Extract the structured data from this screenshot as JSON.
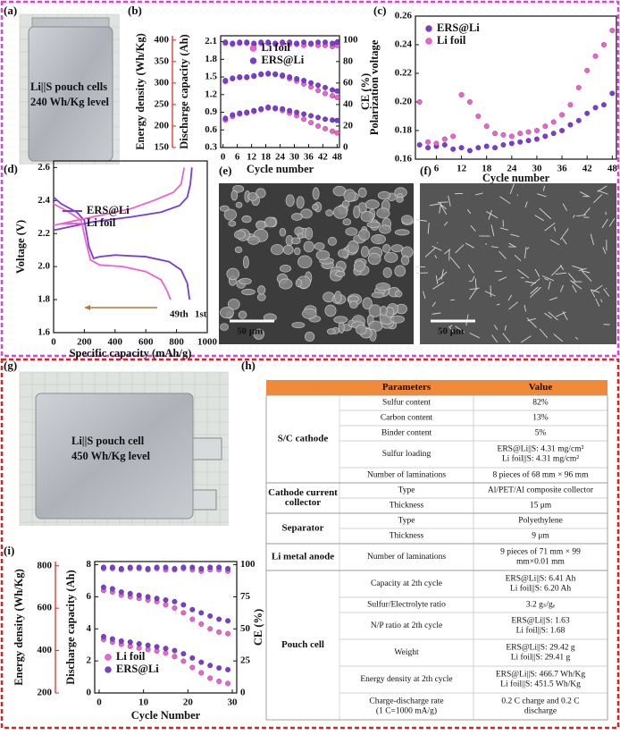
{
  "panel_labels": [
    "(a)",
    "(b)",
    "(c)",
    "(d)",
    "(e)",
    "(f)",
    "(g)",
    "(h)",
    "(i)"
  ],
  "photos": [
    {
      "lines": [
        "Li||S pouch cells",
        "240 Wh/Kg level"
      ]
    },
    {
      "lines": [
        "Li||S pouch cell",
        "450 Wh/Kg level"
      ]
    }
  ],
  "sem_images": [
    {
      "scale_bar": "50 μm"
    },
    {
      "scale_bar": "50 μm"
    }
  ],
  "chart_data": [
    {
      "type": "scatter",
      "xlabel": "Cycle number",
      "ylabel": "Discharge capacity (Ah)",
      "y2label": "CE (%)",
      "y3label": "Energy density (Wh/Kg)",
      "y3color": "#e0201b",
      "x": [
        1,
        4,
        7,
        10,
        13,
        16,
        19,
        22,
        25,
        28,
        31,
        34,
        37,
        40,
        43,
        46,
        48
      ],
      "xlim": [
        -1,
        49
      ],
      "xticks": [
        0,
        6,
        12,
        18,
        24,
        30,
        36,
        42,
        48
      ],
      "ylim": [
        0.3,
        2.2
      ],
      "yticks": [
        0.3,
        0.6,
        0.9,
        1.2,
        1.5,
        1.8,
        2.1
      ],
      "y2lim": [
        0,
        104
      ],
      "y2ticks": [
        0,
        20,
        40,
        60,
        80,
        100
      ],
      "y3lim": [
        150,
        410
      ],
      "y3ticks": [
        150,
        200,
        250,
        300,
        350,
        400
      ],
      "legend": "upper center",
      "series": [
        {
          "name": "Li foil",
          "color": "#f060d0",
          "values": [
            1.42,
            1.47,
            1.49,
            1.49,
            1.51,
            1.54,
            1.55,
            1.54,
            1.51,
            1.47,
            1.43,
            1.38,
            1.33,
            1.27,
            1.22,
            1.18,
            1.15
          ]
        },
        {
          "name": "ERS@Li",
          "color": "#7a3bd6",
          "values": [
            1.44,
            1.48,
            1.5,
            1.5,
            1.52,
            1.55,
            1.56,
            1.55,
            1.53,
            1.5,
            1.47,
            1.44,
            1.4,
            1.36,
            1.32,
            1.28,
            1.26
          ]
        },
        {
          "color": "#f060d0",
          "axis": "y3",
          "values": [
            214,
            222,
            228,
            230,
            234,
            238,
            242,
            240,
            236,
            230,
            224,
            216,
            208,
            200,
            194,
            188,
            184
          ]
        },
        {
          "color": "#7a3bd6",
          "axis": "y3",
          "values": [
            218,
            226,
            230,
            232,
            236,
            240,
            244,
            242,
            240,
            236,
            232,
            228,
            224,
            220,
            216,
            214,
            213
          ]
        },
        {
          "color": "#f060d0",
          "axis": "y2",
          "values": [
            97,
            96,
            97,
            97,
            96,
            97,
            97,
            96,
            97,
            96,
            96,
            95,
            96,
            95,
            95,
            94,
            95
          ]
        },
        {
          "color": "#7a3bd6",
          "axis": "y2",
          "values": [
            98,
            97,
            98,
            98,
            97,
            98,
            98,
            97,
            98,
            98,
            97,
            98,
            97,
            98,
            98,
            97,
            98
          ]
        }
      ]
    },
    {
      "type": "scatter",
      "xlabel": "Cycle number",
      "ylabel": "Polarization voltage",
      "x": [
        2,
        4,
        6,
        8,
        10,
        12,
        14,
        16,
        18,
        20,
        22,
        24,
        26,
        28,
        30,
        32,
        34,
        36,
        38,
        40,
        42,
        44,
        46,
        48
      ],
      "xlim": [
        1,
        49
      ],
      "xticks": [
        6,
        12,
        18,
        24,
        30,
        36,
        42,
        48
      ],
      "ylim": [
        0.16,
        0.26
      ],
      "yticks": [
        0.16,
        0.18,
        {
          "value": 0.2,
          "label": "0.20"
        },
        0.22,
        0.24,
        0.26
      ],
      "legend": "upper left",
      "series": [
        {
          "name": "ERS@Li",
          "color": "#7a3bd6",
          "values": [
            0.17,
            0.168,
            0.169,
            0.17,
            0.167,
            0.168,
            0.166,
            0.168,
            0.169,
            0.168,
            0.17,
            0.171,
            0.172,
            0.173,
            0.174,
            0.176,
            0.178,
            0.18,
            0.184,
            0.187,
            0.192,
            0.196,
            0.198,
            0.206
          ]
        },
        {
          "name": "Li foil",
          "color": "#f060d0",
          "values": [
            0.2,
            0.172,
            0.171,
            0.174,
            0.176,
            0.205,
            0.2,
            0.19,
            0.183,
            0.178,
            0.177,
            0.176,
            0.178,
            0.179,
            0.18,
            0.183,
            0.186,
            0.191,
            0.198,
            0.21,
            0.222,
            0.232,
            0.24,
            0.25
          ]
        }
      ]
    },
    {
      "type": "line",
      "xlabel": "Specific capacity (mAh/g)",
      "ylabel": "Voltage (V)",
      "xlim": [
        0,
        1000
      ],
      "xticks": [
        0,
        200,
        400,
        600,
        800,
        1000
      ],
      "ylim": [
        1.6,
        2.64
      ],
      "yticks": [
        1.6,
        1.8,
        {
          "value": 2,
          "label": "2.0"
        },
        2.2,
        2.4,
        2.6
      ],
      "legend": "center left",
      "annotations": [
        "49th",
        "1st"
      ],
      "series": [
        {
          "name": "ERS@Li",
          "color": "#7a3bd6",
          "x": [
            0,
            50,
            150,
            200,
            230,
            260,
            300,
            400,
            600,
            750,
            830,
            870,
            885,
            null,
            0,
            100,
            250,
            500,
            700,
            820,
            870,
            890,
            900
          ],
          "values": [
            2.42,
            2.38,
            2.33,
            2.28,
            2.12,
            2.05,
            2.06,
            2.07,
            2.06,
            2.03,
            1.98,
            1.9,
            1.8,
            null,
            2.22,
            2.24,
            2.27,
            2.3,
            2.33,
            2.37,
            2.42,
            2.5,
            2.6
          ]
        },
        {
          "name": "Li foil",
          "color": "#f060d0",
          "x": [
            0,
            100,
            180,
            210,
            240,
            300,
            450,
            600,
            700,
            740,
            760,
            null,
            0,
            100,
            250,
            500,
            650,
            780,
            830,
            850
          ],
          "values": [
            2.38,
            2.33,
            2.28,
            2.15,
            2.04,
            2.01,
            2,
            1.97,
            1.92,
            1.85,
            1.8,
            null,
            2.25,
            2.27,
            2.3,
            2.35,
            2.4,
            2.45,
            2.5,
            2.6
          ]
        }
      ]
    },
    {
      "type": "scatter",
      "xlabel": "Cycle Number",
      "ylabel": "Discharge capacity (Ah)",
      "y2label": "CE (%)",
      "y3label": "Energy density (Wh/Kg)",
      "y3color": "#e0201b",
      "x": [
        1,
        3,
        5,
        7,
        9,
        11,
        13,
        15,
        17,
        19,
        21,
        23,
        25,
        27,
        29
      ],
      "xlim": [
        -1,
        31
      ],
      "xticks": [
        0,
        10,
        20,
        30
      ],
      "ylim": [
        0,
        8.2
      ],
      "yticks": [
        0,
        2,
        4,
        6,
        8
      ],
      "y2lim": [
        0,
        102.5
      ],
      "y2ticks": [
        0,
        25,
        50,
        75,
        100
      ],
      "y3lim": [
        200,
        820
      ],
      "y3ticks": [
        200,
        400,
        600,
        800
      ],
      "legend": "lower left",
      "series": [
        {
          "name": "Li foil",
          "color": "#f060d0",
          "values": [
            6.4,
            6.3,
            6.1,
            6,
            5.9,
            5.8,
            5.7,
            5.5,
            5.3,
            5,
            4.6,
            4.3,
            4,
            3.8,
            3.7
          ]
        },
        {
          "name": "ERS@Li",
          "color": "#7a3bd6",
          "values": [
            6.6,
            6.5,
            6.3,
            6.2,
            6.1,
            6,
            5.9,
            5.8,
            5.7,
            5.5,
            5.2,
            5,
            4.8,
            4.6,
            4.5
          ]
        },
        {
          "color": "#f060d0",
          "axis": "y3",
          "values": [
            452,
            440,
            430,
            420,
            412,
            405,
            398,
            388,
            372,
            350,
            320,
            295,
            270,
            255,
            245
          ]
        },
        {
          "color": "#7a3bd6",
          "axis": "y3",
          "values": [
            466,
            455,
            445,
            440,
            432,
            425,
            418,
            410,
            400,
            385,
            365,
            345,
            330,
            318,
            310
          ]
        },
        {
          "color": "#f060d0",
          "axis": "y2",
          "values": [
            97,
            97,
            96,
            97,
            97,
            96,
            97,
            96,
            96,
            97,
            96,
            95,
            96,
            96,
            95
          ]
        },
        {
          "color": "#7a3bd6",
          "axis": "y2",
          "values": [
            98,
            98,
            97,
            98,
            98,
            97,
            98,
            98,
            97,
            98,
            98,
            97,
            98,
            98,
            97
          ]
        }
      ]
    }
  ],
  "table": {
    "header": [
      "Parameters",
      "Value"
    ],
    "groups": [
      {
        "name": [
          "S/C cathode"
        ],
        "rows": [
          {
            "param": [
              "Sulfur content"
            ],
            "value": [
              "82%"
            ]
          },
          {
            "param": [
              "Carbon content"
            ],
            "value": [
              "13%"
            ]
          },
          {
            "param": [
              "Binder content"
            ],
            "value": [
              "5%"
            ]
          },
          {
            "param": [
              "Sulfur loading"
            ],
            "value": [
              "ERS@Li||S: 4.31 mg/cm²",
              "Li foil||S: 4.31 mg/cm²"
            ]
          },
          {
            "param": [
              "Number of laminations"
            ],
            "value": [
              "8 pieces of 68 mm × 96 mm"
            ]
          }
        ]
      },
      {
        "name": [
          "Cathode current",
          "collector"
        ],
        "rows": [
          {
            "param": [
              "Type"
            ],
            "value": [
              "Al/PET/Al composite collector"
            ]
          },
          {
            "param": [
              "Thickness"
            ],
            "value": [
              "15 μm"
            ]
          }
        ]
      },
      {
        "name": [
          "Separator"
        ],
        "rows": [
          {
            "param": [
              "Type"
            ],
            "value": [
              "Polyethylene"
            ]
          },
          {
            "param": [
              "Thickness"
            ],
            "value": [
              "9 μm"
            ]
          }
        ]
      },
      {
        "name": [
          "Li metal anode"
        ],
        "rows": [
          {
            "param": [
              "Number of laminations"
            ],
            "value": [
              "9 pieces of 71 mm × 99",
              "mm×0.01 mm"
            ]
          }
        ]
      },
      {
        "name": [
          "Pouch cell"
        ],
        "rows": [
          {
            "param": [
              "Capacity at 2th cycle"
            ],
            "value": [
              "ERS@Li||S: 6.41 Ah",
              "Li foil||S: 6.20 Ah"
            ]
          },
          {
            "param": [
              "Sulfur/Electrolyte ratio"
            ],
            "value": [
              "3.2 gₛ/gₑ"
            ]
          },
          {
            "param": [
              "N/P ratio at 2th cycle"
            ],
            "value": [
              "ERS@Li||S: 1.63",
              "Li foil||S: 1.68"
            ]
          },
          {
            "param": [
              "Weight"
            ],
            "value": [
              "ERS@Li||S: 29.42 g",
              "Li foil||S: 29.41 g"
            ]
          },
          {
            "param": [
              "Energy density at 2th cycle"
            ],
            "value": [
              "ERS@Li||S: 466.7 Wh/Kg",
              "Li foil||S: 451.5 Wh/Kg"
            ]
          },
          {
            "param": [
              "Charge-discharge rate",
              "(1 C=1000 mA/g)"
            ],
            "value": [
              "0.2 C charge and 0.2 C",
              "discharge"
            ]
          }
        ]
      }
    ]
  }
}
